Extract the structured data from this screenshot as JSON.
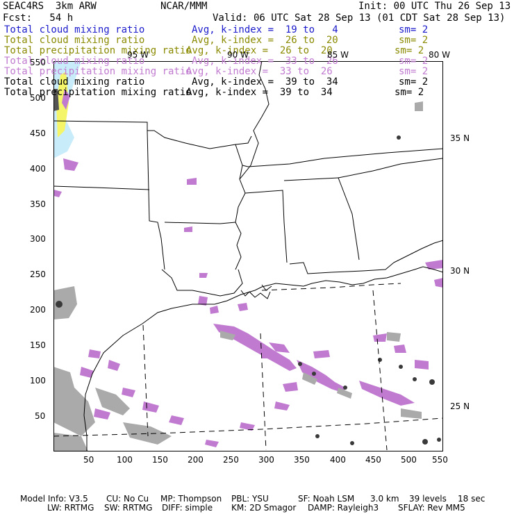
{
  "header": {
    "model": "SEAC4RS  3km ARW",
    "org": "NCAR/MMM",
    "init": "Init: 00 UTC Thu 26 Sep 13",
    "fcst": "Fcst:   54 h",
    "valid": "Valid: 06 UTC Sat 28 Sep 13 (01 CDT Sat 28 Sep 13)"
  },
  "legend": [
    {
      "field": "Total cloud mixing ratio",
      "avg": "Avg, k-index =  19 to   4",
      "sm": "sm= 2",
      "color": "#1a1acc"
    },
    {
      "field": "Total cloud mixing ratio",
      "avg": "Avg, k-index =  26 to  20",
      "sm": "sm= 2",
      "color": "#8a8a00"
    },
    {
      "field": "Total precipitation mixing ratio",
      "avg": "Avg, k-index =  26 to  20",
      "sm": "sm= 2",
      "color": "#8a8a00"
    },
    {
      "field": "Total cloud mixing ratio",
      "avg": "Avg, k-index =  33 to  26",
      "sm": "sm= 2",
      "color": "#c07ad0"
    },
    {
      "field": "Total precipitation mixing ratio",
      "avg": "Avg, k-index =  33 to  26",
      "sm": "sm= 2",
      "color": "#c07ad0"
    },
    {
      "field": "Total cloud mixing ratio",
      "avg": "Avg, k-index =  39 to  34",
      "sm": "sm= 2",
      "color": "#000000"
    },
    {
      "field": "Total precipitation mixing ratio",
      "avg": "Avg, k-index =  39 to  34",
      "sm": "sm= 2",
      "color": "#000000"
    }
  ],
  "axes": {
    "y_ticks": [
      "50",
      "100",
      "150",
      "200",
      "250",
      "300",
      "350",
      "400",
      "450",
      "500",
      "550"
    ],
    "x_ticks": [
      "50",
      "100",
      "150",
      "200",
      "250",
      "300",
      "350",
      "400",
      "450",
      "500",
      "550"
    ],
    "lon_labels": [
      "95 W",
      "90 W",
      "85 W",
      "80 W"
    ],
    "lat_labels": [
      "35 N",
      "30 N",
      "25 N"
    ]
  },
  "footer": {
    "line1": [
      "Model Info: V3.5",
      "CU: No Cu",
      "MP: Thompson",
      "PBL: YSU",
      "SF: Noah LSM",
      "3.0 km",
      "39 levels",
      "18 sec"
    ],
    "line2": [
      "LW: RRTMG",
      "SW: RRTMG",
      "DIFF: simple",
      "KM: 2D Smagor",
      "DAMP: Rayleigh3",
      "SFLAY: Rev MM5"
    ]
  },
  "colors": {
    "cloud_low": "#c8ecfa",
    "cloud_mid_yellow": "#f5f56a",
    "cloud_purple": "#c07ad0",
    "cloud_gray": "#aaaaaa",
    "cloud_dark": "#3a3a3a"
  }
}
